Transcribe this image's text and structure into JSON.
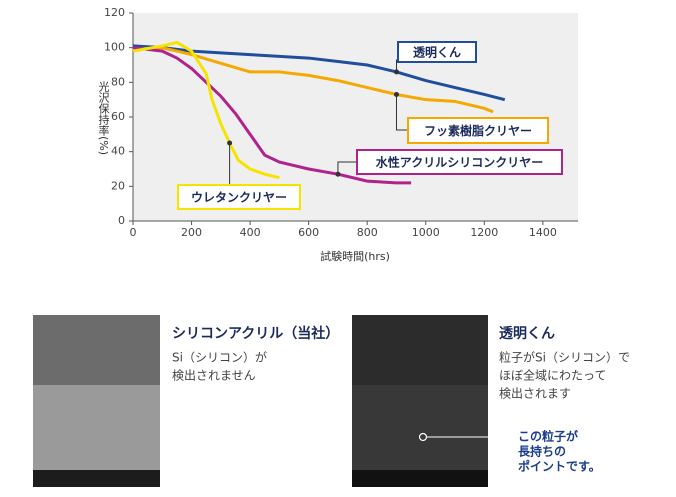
{
  "chart_data": {
    "type": "line",
    "ylabel": "光沢保持率(%)",
    "xlabel": "試験時間(hrs)",
    "xlim": [
      0,
      1520
    ],
    "ylim": [
      0,
      120
    ],
    "xticks": [
      0,
      200,
      400,
      600,
      800,
      1000,
      1200,
      1400
    ],
    "yticks": [
      0,
      20,
      40,
      60,
      80,
      100,
      120
    ],
    "series": [
      {
        "name": "透明くん",
        "color": "#1f4e9c",
        "x": [
          0,
          100,
          200,
          300,
          400,
          500,
          600,
          700,
          800,
          900,
          1000,
          1100,
          1200,
          1270
        ],
        "values": [
          101,
          100,
          98,
          97,
          96,
          95,
          94,
          92,
          90,
          86,
          81,
          77,
          73,
          70
        ]
      },
      {
        "name": "フッ素樹脂クリヤー",
        "color": "#f5a800",
        "x": [
          0,
          100,
          200,
          300,
          400,
          500,
          600,
          700,
          800,
          900,
          1000,
          1100,
          1200,
          1230
        ],
        "values": [
          99,
          100,
          96,
          91,
          86,
          86,
          84,
          81,
          77,
          73,
          70,
          69,
          65,
          63
        ]
      },
      {
        "name": "水性アクリルシリコンクリヤー",
        "color": "#b0228c",
        "x": [
          0,
          100,
          150,
          200,
          250,
          300,
          350,
          400,
          450,
          500,
          600,
          700,
          800,
          900,
          950
        ],
        "values": [
          100,
          98,
          94,
          88,
          80,
          72,
          62,
          50,
          38,
          34,
          30,
          27,
          23,
          22,
          22
        ]
      },
      {
        "name": "ウレタンクリヤー",
        "color": "#f5e400",
        "x": [
          0,
          100,
          150,
          200,
          250,
          270,
          300,
          330,
          360,
          400,
          450,
          500
        ],
        "values": [
          98,
          101,
          103,
          98,
          85,
          70,
          56,
          45,
          35,
          30,
          27,
          25
        ]
      }
    ]
  },
  "panels": [
    {
      "title": "シリコンアクリル（当社）",
      "lines": [
        "Si（シリコン）が",
        "検出されません"
      ]
    },
    {
      "title": "透明くん",
      "lines": [
        "粒子がSi（シリコン）で",
        "ほぼ全域にわたって",
        "検出されます"
      ]
    }
  ],
  "note": [
    "この粒子が",
    "長持ちの",
    "ポイントです。"
  ]
}
